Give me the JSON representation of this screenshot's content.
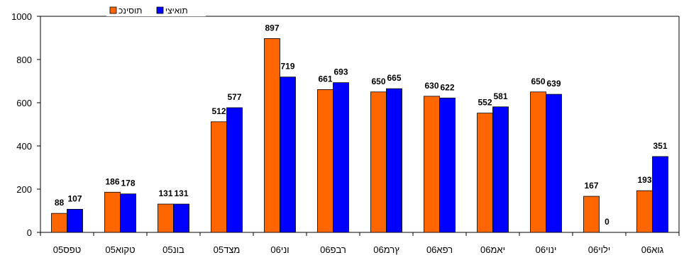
{
  "chart_data": {
    "type": "bar",
    "categories": [
      "05טפס",
      "05טקוא",
      "05בונ",
      "05מצד",
      "06וני",
      "06רבפ",
      "06ץרמ",
      "06רפא",
      "06יאמ",
      "06ינוי",
      "06ילוי",
      "06גוא"
    ],
    "series": [
      {
        "name": "תוסינכ",
        "color": "#ff6600",
        "values": [
          88,
          186,
          131,
          512,
          897,
          661,
          650,
          630,
          552,
          650,
          167,
          193
        ]
      },
      {
        "name": "תואיצי",
        "color": "#0000ff",
        "values": [
          107,
          178,
          131,
          577,
          719,
          693,
          665,
          622,
          581,
          639,
          0,
          351
        ]
      }
    ],
    "ylim": [
      0,
      1000
    ],
    "yticks": [
      0,
      200,
      400,
      600,
      800,
      1000
    ],
    "legend_position": "top",
    "grid": false
  }
}
